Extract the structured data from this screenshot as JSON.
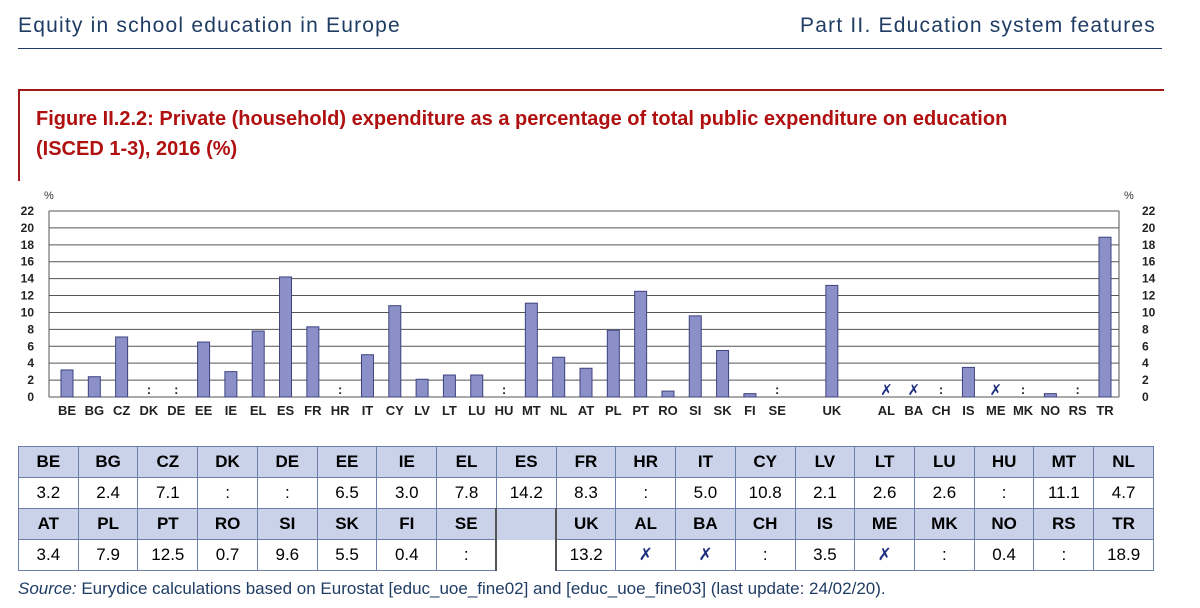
{
  "header": {
    "left": "Equity in school education in Europe",
    "right": "Part II. Education system features"
  },
  "figure": {
    "title_line1": "Figure II.2.2: Private (household) expenditure as a percentage of total public expenditure on education",
    "title_line2": "(ISCED 1-3), 2016 (%)"
  },
  "chart_data": {
    "type": "bar",
    "title": "Figure II.2.2: Private (household) expenditure as a percentage of total public expenditure on education (ISCED 1-3), 2016 (%)",
    "ylabel": "%",
    "ylim": [
      0,
      22
    ],
    "yticks": [
      0,
      2,
      4,
      6,
      8,
      10,
      12,
      14,
      16,
      18,
      20,
      22
    ],
    "grid": true,
    "bar_color": "#8b90c8",
    "categories": [
      "BE",
      "BG",
      "CZ",
      "DK",
      "DE",
      "EE",
      "IE",
      "EL",
      "ES",
      "FR",
      "HR",
      "IT",
      "CY",
      "LV",
      "LT",
      "LU",
      "HU",
      "MT",
      "NL",
      "AT",
      "PL",
      "PT",
      "RO",
      "SI",
      "SK",
      "FI",
      "SE",
      "UK",
      "AL",
      "BA",
      "CH",
      "IS",
      "ME",
      "MK",
      "NO",
      "RS",
      "TR"
    ],
    "values": [
      3.2,
      2.4,
      7.1,
      null,
      null,
      6.5,
      3.0,
      7.8,
      14.2,
      8.3,
      null,
      5.0,
      10.8,
      2.1,
      2.6,
      2.6,
      null,
      11.1,
      4.7,
      3.4,
      7.9,
      12.5,
      0.7,
      9.6,
      5.5,
      0.4,
      null,
      13.2,
      null,
      null,
      null,
      3.5,
      null,
      null,
      0.4,
      null,
      18.9
    ],
    "flags": [
      "",
      "",
      "",
      ":",
      ":",
      "",
      "",
      "",
      "",
      "",
      ":",
      "",
      "",
      "",
      "",
      "",
      ":",
      "",
      "",
      "",
      "",
      "",
      "",
      "",
      "",
      "",
      ":",
      "",
      "x",
      "x",
      ":",
      "",
      "x",
      ":",
      "",
      ":",
      ""
    ]
  },
  "symbols": {
    "not_available": ":",
    "not_applicable": "✗"
  },
  "table": {
    "row1_labels": [
      "BE",
      "BG",
      "CZ",
      "DK",
      "DE",
      "EE",
      "IE",
      "EL",
      "ES",
      "FR",
      "HR",
      "IT",
      "CY",
      "LV",
      "LT",
      "LU",
      "HU",
      "MT",
      "NL"
    ],
    "row1_values": [
      "3.2",
      "2.4",
      "7.1",
      ":",
      ":",
      "6.5",
      "3.0",
      "7.8",
      "14.2",
      "8.3",
      ":",
      "5.0",
      "10.8",
      "2.1",
      "2.6",
      "2.6",
      ":",
      "11.1",
      "4.7"
    ],
    "row2_labels": [
      "AT",
      "PL",
      "PT",
      "RO",
      "SI",
      "SK",
      "FI",
      "SE",
      "",
      "UK",
      "AL",
      "BA",
      "CH",
      "IS",
      "ME",
      "MK",
      "NO",
      "RS",
      "TR"
    ],
    "row2_values": [
      "3.4",
      "7.9",
      "12.5",
      "0.7",
      "9.6",
      "5.5",
      "0.4",
      ":",
      "",
      "13.2",
      "✗",
      "✗",
      ":",
      "3.5",
      "✗",
      ":",
      "0.4",
      ":",
      "18.9"
    ]
  },
  "source": {
    "label": "Source:",
    "text": " Eurydice calculations based on Eurostat [educ_uoe_fine02] and [educ_uoe_fine03] (last update: 24/02/20)."
  }
}
